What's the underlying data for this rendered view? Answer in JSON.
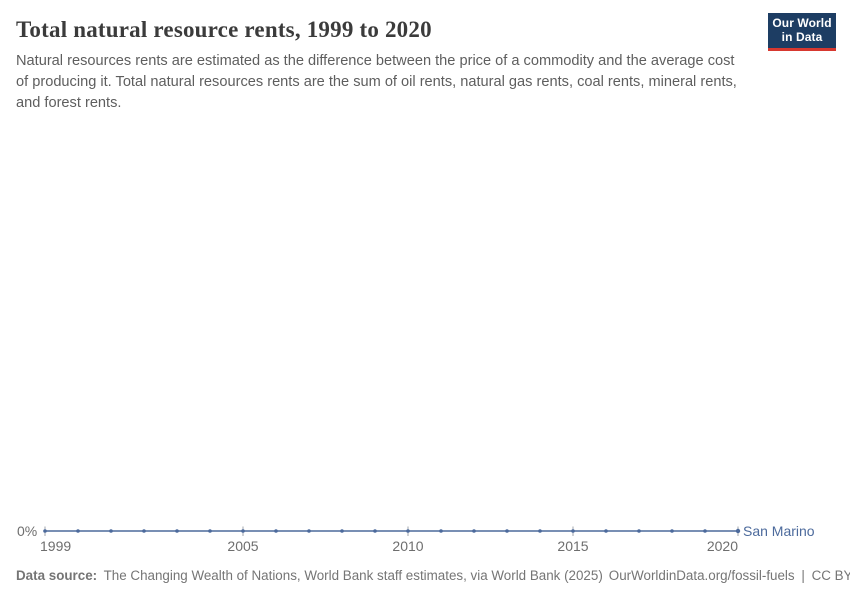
{
  "header": {
    "title": "Total natural resource rents, 1999 to 2020",
    "subtitle": "Natural resources rents are estimated as the difference between the price of a commodity and the average cost of producing it. Total natural resources rents are the sum of oil rents, natural gas rents, coal rents, mineral rents, and forest rents.",
    "logo": {
      "line1": "Our World",
      "line2": "in Data"
    }
  },
  "chart_data": {
    "type": "line",
    "title": "Total natural resource rents, 1999 to 2020",
    "x": [
      1999,
      2000,
      2001,
      2002,
      2003,
      2004,
      2005,
      2006,
      2007,
      2008,
      2009,
      2010,
      2011,
      2012,
      2013,
      2014,
      2015,
      2016,
      2017,
      2018,
      2019,
      2020
    ],
    "series": [
      {
        "name": "San Marino",
        "color": "#4c6a9c",
        "values": [
          0,
          0,
          0,
          0,
          0,
          0,
          0,
          0,
          0,
          0,
          0,
          0,
          0,
          0,
          0,
          0,
          0,
          0,
          0,
          0,
          0,
          0
        ]
      }
    ],
    "xlabel": "",
    "ylabel": "",
    "y_unit": "%",
    "x_ticks": [
      1999,
      2005,
      2010,
      2015,
      2020
    ],
    "y_tick_labels": [
      "0%"
    ],
    "xlim": [
      1999,
      2020
    ],
    "grid": false,
    "legend_position": "inline-right-of-line"
  },
  "axis": {
    "y_zero_label": "0%"
  },
  "footer": {
    "data_source_label": "Data source:",
    "data_source_text": "The Changing Wealth of Nations, World Bank staff estimates, via World Bank (2025)",
    "url_text": "OurWorldinData.org/fossil-fuels",
    "separator": "|",
    "license": "CC BY"
  },
  "colors": {
    "line": "#4c6a9c",
    "entity_label": "#4c6a9c",
    "logo_bg": "#1d3d63",
    "logo_bar": "#d7382f",
    "title_text": "#3b3b3b",
    "subtitle_text": "#5e5e5e",
    "axis_text": "#6e6e6e",
    "footer_text": "#757575",
    "tick_mark": "#a0a6ad"
  }
}
